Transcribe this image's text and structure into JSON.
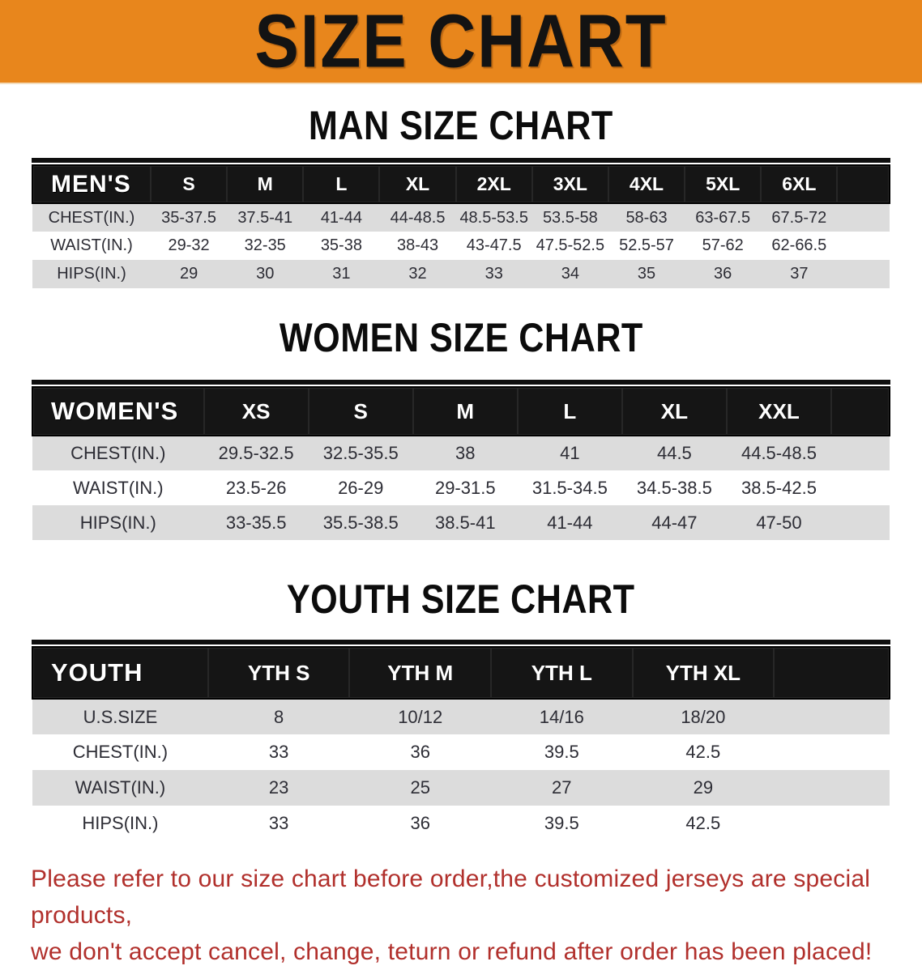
{
  "banner": {
    "title": "SIZE CHART"
  },
  "sections": [
    {
      "heading": "MAN SIZE CHART",
      "table": {
        "label": "MEN'S",
        "columns": [
          "S",
          "M",
          "L",
          "XL",
          "2XL",
          "3XL",
          "4XL",
          "5XL",
          "6XL"
        ],
        "rows": [
          {
            "label": "CHEST(IN.)",
            "values": [
              "35-37.5",
              "37.5-41",
              "41-44",
              "44-48.5",
              "48.5-53.5",
              "53.5-58",
              "58-63",
              "63-67.5",
              "67.5-72"
            ]
          },
          {
            "label": "WAIST(IN.)",
            "values": [
              "29-32",
              "32-35",
              "35-38",
              "38-43",
              "43-47.5",
              "47.5-52.5",
              "52.5-57",
              "57-62",
              "62-66.5"
            ]
          },
          {
            "label": "HIPS(IN.)",
            "values": [
              "29",
              "30",
              "31",
              "32",
              "33",
              "34",
              "35",
              "36",
              "37"
            ]
          }
        ]
      }
    },
    {
      "heading": "WOMEN SIZE CHART",
      "table": {
        "label": "WOMEN'S",
        "columns": [
          "XS",
          "S",
          "M",
          "L",
          "XL",
          "XXL"
        ],
        "rows": [
          {
            "label": "CHEST(IN.)",
            "values": [
              "29.5-32.5",
              "32.5-35.5",
              "38",
              "41",
              "44.5",
              "44.5-48.5"
            ]
          },
          {
            "label": "WAIST(IN.)",
            "values": [
              "23.5-26",
              "26-29",
              "29-31.5",
              "31.5-34.5",
              "34.5-38.5",
              "38.5-42.5"
            ]
          },
          {
            "label": "HIPS(IN.)",
            "values": [
              "33-35.5",
              "35.5-38.5",
              "38.5-41",
              "41-44",
              "44-47",
              "47-50"
            ]
          }
        ]
      }
    },
    {
      "heading": "YOUTH SIZE CHART",
      "table": {
        "label": "YOUTH",
        "columns": [
          "YTH S",
          "YTH M",
          "YTH L",
          "YTH XL"
        ],
        "rows": [
          {
            "label": "U.S.SIZE",
            "values": [
              "8",
              "10/12",
              "14/16",
              "18/20"
            ]
          },
          {
            "label": "CHEST(IN.)",
            "values": [
              "33",
              "36",
              "39.5",
              "42.5"
            ]
          },
          {
            "label": "WAIST(IN.)",
            "values": [
              "23",
              "25",
              "27",
              "29"
            ]
          },
          {
            "label": "HIPS(IN.)",
            "values": [
              "33",
              "36",
              "39.5",
              "42.5"
            ]
          }
        ]
      }
    }
  ],
  "footer": {
    "line1": "Please refer to our size chart before order,the customized jerseys are special products,",
    "line2": "we don't accept cancel, change, teturn or refund after order has been placed!"
  },
  "colors": {
    "banner_bg": "#e8861c",
    "header_bar": "#151515",
    "row_stripe": "#dcdcdc",
    "footer_text": "#b1302c"
  }
}
